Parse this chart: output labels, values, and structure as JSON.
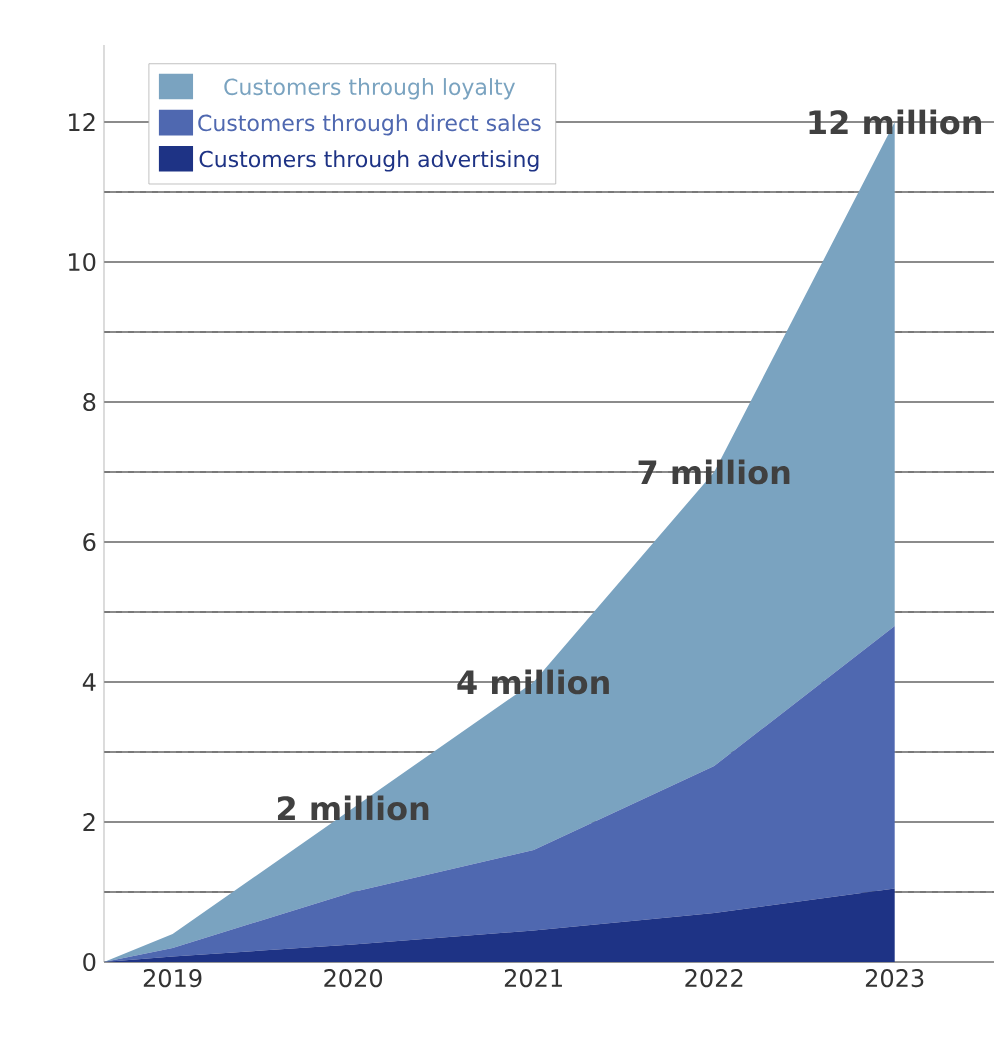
{
  "chart_data": {
    "type": "area",
    "stacked": true,
    "x": [
      2018.62,
      2019,
      2020,
      2021,
      2022,
      2023
    ],
    "series": [
      {
        "name": "Customers through advertising",
        "color": "#1e3385",
        "values": [
          0,
          0.08,
          0.25,
          0.45,
          0.7,
          1.05
        ]
      },
      {
        "name": "Customers through direct sales",
        "color": "#4f68b0",
        "values": [
          0,
          0.12,
          0.75,
          1.15,
          2.1,
          3.75
        ]
      },
      {
        "name": "Customers through loyalty",
        "color": "#7aa3c0",
        "values": [
          0,
          0.2,
          1.2,
          2.4,
          4.2,
          7.2
        ]
      }
    ],
    "xlim": [
      2018.62,
      2023.55
    ],
    "xticks": [
      2019,
      2020,
      2021,
      2022,
      2023
    ],
    "ylim": [
      0,
      13.1
    ],
    "yticks": [
      0,
      {
        "value": 1,
        "label": null
      },
      2,
      {
        "value": 3,
        "label": null
      },
      4,
      {
        "value": 5,
        "label": null
      },
      6,
      {
        "value": 7,
        "label": null
      },
      8,
      {
        "value": 9,
        "label": null
      },
      10,
      {
        "value": 11,
        "label": null
      },
      12
    ],
    "grid": "y",
    "legend": "top left",
    "annotations": [
      {
        "text": "2 million",
        "x": 2020,
        "y": 2.2
      },
      {
        "text": "4 million",
        "x": 2021,
        "y": 4
      },
      {
        "text": "7 million",
        "x": 2022,
        "y": 7
      },
      {
        "text": "12 million",
        "x": 2023,
        "y": 12
      }
    ]
  }
}
